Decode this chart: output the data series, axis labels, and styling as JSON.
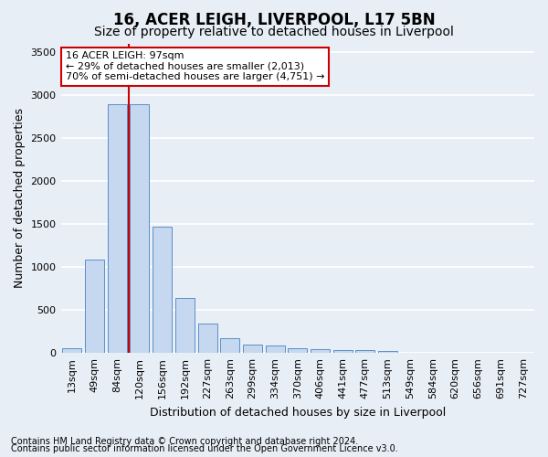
{
  "title": "16, ACER LEIGH, LIVERPOOL, L17 5BN",
  "subtitle": "Size of property relative to detached houses in Liverpool",
  "xlabel": "Distribution of detached houses by size in Liverpool",
  "ylabel": "Number of detached properties",
  "footnote1": "Contains HM Land Registry data © Crown copyright and database right 2024.",
  "footnote2": "Contains public sector information licensed under the Open Government Licence v3.0.",
  "categories": [
    "13sqm",
    "49sqm",
    "84sqm",
    "120sqm",
    "156sqm",
    "192sqm",
    "227sqm",
    "263sqm",
    "299sqm",
    "334sqm",
    "370sqm",
    "406sqm",
    "441sqm",
    "477sqm",
    "513sqm",
    "549sqm",
    "584sqm",
    "620sqm",
    "656sqm",
    "691sqm",
    "727sqm"
  ],
  "values": [
    55,
    1090,
    2890,
    2890,
    1470,
    635,
    340,
    175,
    100,
    90,
    60,
    40,
    35,
    30,
    25,
    5,
    3,
    2,
    1,
    1,
    0
  ],
  "bar_color": "#c5d8f0",
  "bar_edge_color": "#5b8ec7",
  "vline_x_index": 2,
  "vline_color": "#cc0000",
  "ylim": [
    0,
    3600
  ],
  "yticks": [
    0,
    500,
    1000,
    1500,
    2000,
    2500,
    3000,
    3500
  ],
  "annotation_text": "16 ACER LEIGH: 97sqm\n← 29% of detached houses are smaller (2,013)\n70% of semi-detached houses are larger (4,751) →",
  "annotation_box_facecolor": "#ffffff",
  "annotation_box_edgecolor": "#cc0000",
  "bg_color": "#e8eef6",
  "plot_bg_color": "#e8eef6",
  "grid_color": "#ffffff",
  "title_fontsize": 12,
  "subtitle_fontsize": 10,
  "axis_label_fontsize": 9,
  "tick_fontsize": 8,
  "annotation_fontsize": 8,
  "footnote_fontsize": 7
}
